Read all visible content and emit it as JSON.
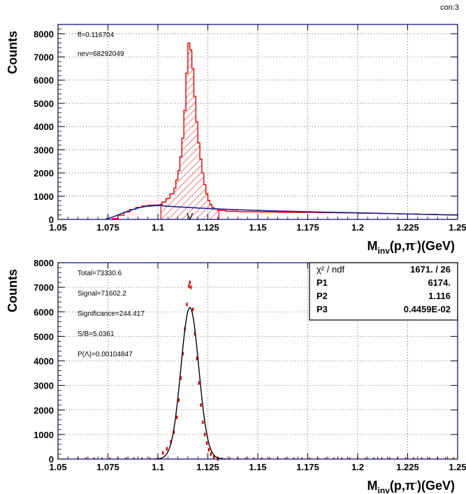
{
  "page": {
    "corner_label": "con:3"
  },
  "colors": {
    "signal": "#e00000",
    "background_fit": "#2020a0",
    "frame": "#000080",
    "fit": "#000000",
    "grid": "#000000"
  },
  "chart_data": [
    {
      "type": "line",
      "title": "",
      "xlabel_main": "M",
      "xlabel_sub": "inv",
      "xlabel_rest": "(p,π",
      "xlabel_sup": "-",
      "xlabel_end": ")(GeV)",
      "ylabel": "Counts",
      "xlim": [
        1.05,
        1.25
      ],
      "ylim": [
        0,
        8400
      ],
      "xticks": [
        1.05,
        1.075,
        1.1,
        1.125,
        1.15,
        1.175,
        1.2,
        1.225,
        1.25
      ],
      "xtick_labels": [
        "1.05",
        "1.075",
        "1.1",
        "1.125",
        "1.15",
        "1.175",
        "1.2",
        "1.225",
        "1.25"
      ],
      "yticks": [
        0,
        1000,
        2000,
        3000,
        4000,
        5000,
        6000,
        7000,
        8000
      ],
      "ytick_labels": [
        "0",
        "1000",
        "2000",
        "3000",
        "4000",
        "5000",
        "6000",
        "7000",
        "8000"
      ],
      "grid": true,
      "annotations": [
        "ff=0.116704",
        "nev=68292049"
      ],
      "signal_window": [
        1.1015,
        1.1305
      ],
      "marker_x": 1.116,
      "series": [
        {
          "kind": "histogram",
          "x": [
            1.077,
            1.08,
            1.083,
            1.086,
            1.089,
            1.092,
            1.095,
            1.098,
            1.101,
            1.102,
            1.104,
            1.106,
            1.108,
            1.109,
            1.11,
            1.111,
            1.112,
            1.113,
            1.114,
            1.115,
            1.116,
            1.117,
            1.118,
            1.119,
            1.12,
            1.121,
            1.122,
            1.123,
            1.124,
            1.125,
            1.126,
            1.127,
            1.128,
            1.13,
            1.134,
            1.14,
            1.15,
            1.16,
            1.17,
            1.18,
            1.19,
            1.2,
            1.21,
            1.22,
            1.23,
            1.24,
            1.25
          ],
          "y": [
            30,
            180,
            320,
            430,
            520,
            580,
            610,
            620,
            650,
            750,
            900,
            1100,
            1350,
            1700,
            2100,
            2700,
            3500,
            4700,
            6300,
            7600,
            7300,
            6500,
            5300,
            4200,
            3300,
            2600,
            2000,
            1500,
            1100,
            820,
            640,
            520,
            450,
            390,
            350,
            330,
            320,
            305,
            300,
            290,
            280,
            265,
            250,
            235,
            220,
            200,
            180
          ]
        },
        {
          "kind": "background_fit",
          "x": [
            1.074,
            1.078,
            1.082,
            1.086,
            1.09,
            1.094,
            1.098,
            1.1,
            1.11,
            1.12,
            1.13,
            1.14,
            1.15,
            1.16,
            1.17,
            1.18,
            1.19,
            1.2,
            1.21,
            1.22,
            1.23,
            1.24,
            1.25
          ],
          "y": [
            20,
            120,
            260,
            390,
            490,
            560,
            590,
            600,
            540,
            490,
            450,
            415,
            385,
            360,
            340,
            320,
            300,
            285,
            265,
            245,
            225,
            205,
            185
          ]
        }
      ]
    },
    {
      "type": "scatter",
      "title": "",
      "xlabel_main": "M",
      "xlabel_sub": "inv",
      "xlabel_rest": "(p,π",
      "xlabel_sup": "-",
      "xlabel_end": ")(GeV)",
      "ylabel": "Counts",
      "xlim": [
        1.05,
        1.25
      ],
      "ylim": [
        0,
        8000
      ],
      "xticks": [
        1.05,
        1.075,
        1.1,
        1.125,
        1.15,
        1.175,
        1.2,
        1.225,
        1.25
      ],
      "xtick_labels": [
        "1.05",
        "1.075",
        "1.1",
        "1.125",
        "1.15",
        "1.175",
        "1.2",
        "1.225",
        "1.25"
      ],
      "yticks": [
        0,
        1000,
        2000,
        3000,
        4000,
        5000,
        6000,
        7000,
        8000
      ],
      "ytick_labels": [
        "0",
        "1000",
        "2000",
        "3000",
        "4000",
        "5000",
        "6000",
        "7000",
        "8000"
      ],
      "grid": true,
      "annotations": [
        "Total=73330.6",
        "Signal=71602.2",
        "Significance=244.417",
        "S/B=5.0361",
        "P(Λ)=0.00104847"
      ],
      "fit_box": {
        "rows": [
          {
            "label": "χ² / ndf",
            "value": "1671.   /  26"
          },
          {
            "label": "P1",
            "value": "6174."
          },
          {
            "label": "P2",
            "value": "1.116"
          },
          {
            "label": "P3",
            "value": "0.4459E-02"
          }
        ]
      },
      "fit": {
        "amplitude": 6174,
        "mean": 1.116,
        "sigma": 0.004459
      },
      "series": [
        {
          "kind": "points",
          "x": [
            1.1025,
            1.1045,
            1.1065,
            1.108,
            1.1095,
            1.1105,
            1.1115,
            1.1125,
            1.1135,
            1.1145,
            1.1155,
            1.116,
            1.1165,
            1.1175,
            1.1185,
            1.1195,
            1.1205,
            1.1215,
            1.1225,
            1.1235,
            1.1245,
            1.1255,
            1.1265,
            1.128,
            1.13
          ],
          "y": [
            250,
            420,
            700,
            1100,
            1700,
            2400,
            3300,
            4300,
            5300,
            6300,
            7050,
            7200,
            7000,
            6100,
            5100,
            4100,
            3100,
            2200,
            1500,
            1000,
            650,
            380,
            200,
            60,
            5
          ]
        }
      ]
    }
  ]
}
